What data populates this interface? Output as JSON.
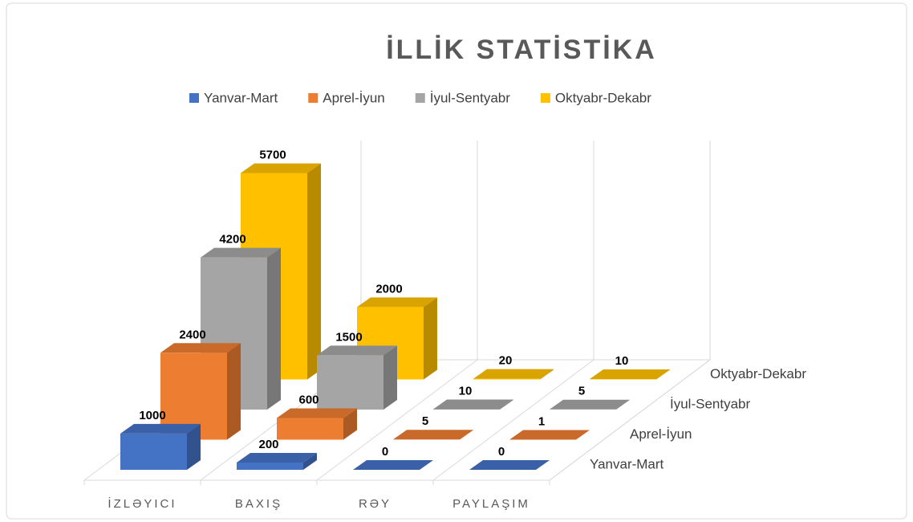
{
  "chart_data": {
    "type": "bar3d",
    "title": "İLLİK STATİSTİKA",
    "categories": [
      "İZLƏYICI",
      "BAXIŞ",
      "RƏY",
      "PAYLAŞIM"
    ],
    "series": [
      {
        "name": "Yanvar-Mart",
        "color": "#4472c4",
        "values": [
          1000,
          200,
          0,
          0
        ]
      },
      {
        "name": "Aprel-İyun",
        "color": "#ed7d31",
        "values": [
          2400,
          600,
          5,
          1
        ]
      },
      {
        "name": "İyul-Sentyabr",
        "color": "#a5a5a5",
        "values": [
          4200,
          1500,
          10,
          5
        ]
      },
      {
        "name": "Oktyabr-Dekabr",
        "color": "#ffc000",
        "values": [
          5700,
          2000,
          20,
          10
        ]
      }
    ]
  }
}
